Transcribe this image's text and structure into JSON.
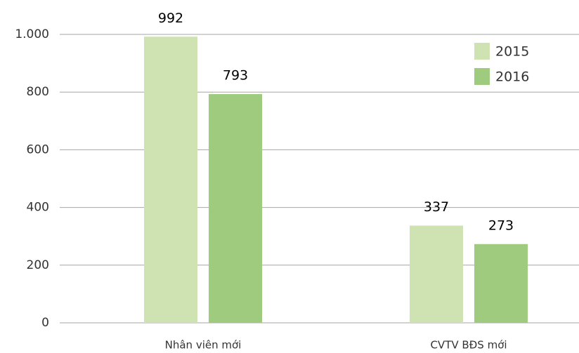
{
  "chart_data": {
    "type": "bar",
    "categories": [
      "Nhân viên mới",
      "CVTV BĐS mới"
    ],
    "series": [
      {
        "name": "2015",
        "color": "#cfe2b1",
        "values": [
          992,
          337
        ]
      },
      {
        "name": "2016",
        "color": "#9ecb7d",
        "values": [
          793,
          273
        ]
      }
    ],
    "ylim": [
      0,
      1000
    ],
    "yticks": [
      0,
      200,
      400,
      600,
      {
        "value": 800,
        "label": "800"
      },
      {
        "value": 1000,
        "label": "1.000"
      }
    ],
    "grid": true,
    "legend": "top-right"
  }
}
